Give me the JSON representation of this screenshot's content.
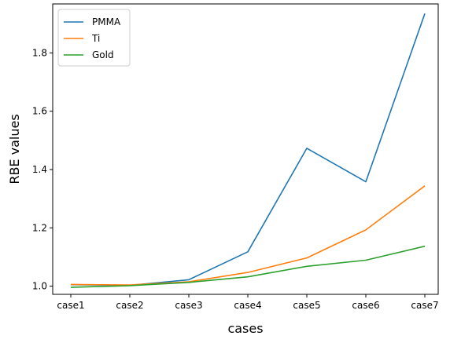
{
  "chart_data": {
    "type": "line",
    "categories": [
      "case1",
      "case2",
      "case3",
      "case4",
      "case5",
      "case6",
      "case7"
    ],
    "series": [
      {
        "name": "PMMA",
        "color": "#1f77b4",
        "values": [
          1.005,
          1.003,
          1.022,
          1.118,
          1.473,
          1.358,
          1.935
        ]
      },
      {
        "name": "Ti",
        "color": "#ff7f0e",
        "values": [
          1.006,
          1.004,
          1.015,
          1.047,
          1.097,
          1.193,
          1.344
        ]
      },
      {
        "name": "Gold",
        "color": "#2ca02c",
        "values": [
          0.996,
          1.002,
          1.013,
          1.032,
          1.068,
          1.089,
          1.137
        ]
      }
    ],
    "xlabel": "cases",
    "ylabel": "RBE values",
    "ylim": [
      0.972,
      1.968
    ],
    "yticks": [
      1.0,
      1.2,
      1.4,
      1.6,
      1.8
    ],
    "ytick_labels": [
      "1.0",
      "1.2",
      "1.4",
      "1.6",
      "1.8"
    ],
    "grid": false,
    "legend_position": "top-left"
  }
}
